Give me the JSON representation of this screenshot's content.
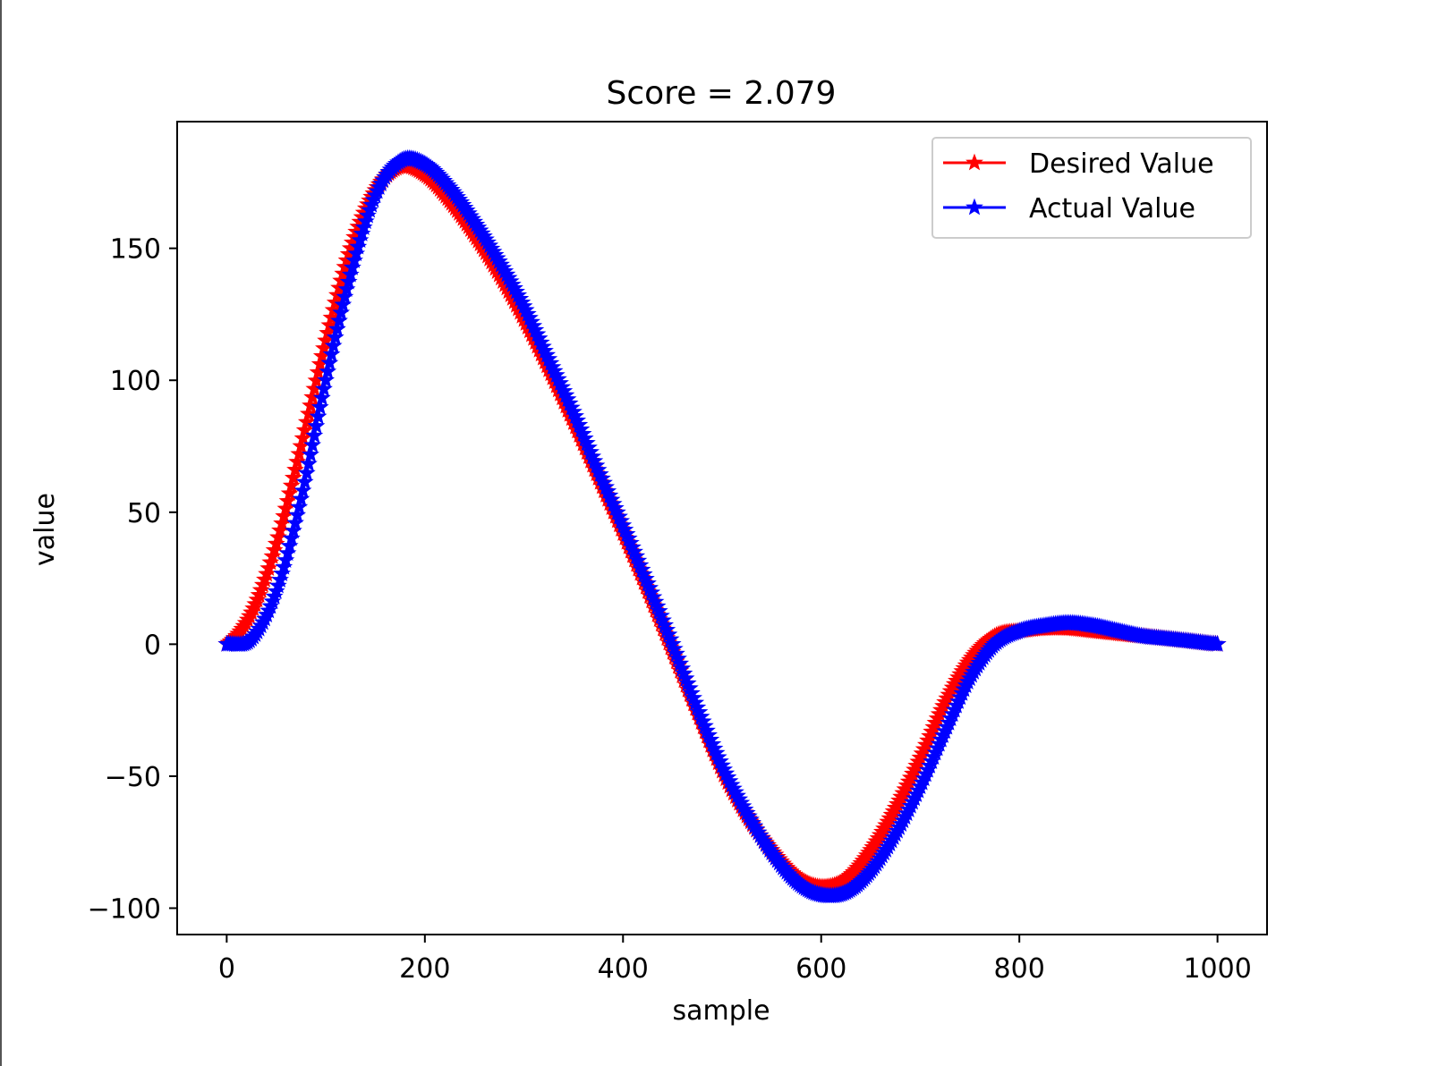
{
  "chart_data": {
    "type": "line",
    "title": "Score = 2.079",
    "xlabel": "sample",
    "ylabel": "value",
    "xlim": [
      -50,
      1050
    ],
    "ylim": [
      -110,
      198
    ],
    "xticks": [
      0,
      200,
      400,
      600,
      800,
      1000
    ],
    "xtick_labels": [
      "0",
      "200",
      "400",
      "600",
      "800",
      "1000"
    ],
    "yticks": [
      -100,
      -50,
      0,
      50,
      100,
      150
    ],
    "ytick_labels": [
      "−100",
      "−50",
      "0",
      "50",
      "100",
      "150"
    ],
    "grid": false,
    "legend_placement": "top-right",
    "marker": "star",
    "x": [
      0,
      25,
      50,
      75,
      100,
      125,
      150,
      175,
      200,
      225,
      250,
      275,
      300,
      325,
      350,
      375,
      400,
      425,
      450,
      475,
      500,
      525,
      550,
      575,
      600,
      625,
      650,
      675,
      700,
      725,
      750,
      775,
      800,
      825,
      850,
      875,
      900,
      925,
      950,
      975,
      1000
    ],
    "series": [
      {
        "name": "Desired Value",
        "color": "#ff0000",
        "values": [
          0,
          12,
          38,
          75,
          115,
          150,
          172,
          181,
          178,
          168,
          155,
          140,
          123,
          104,
          84,
          63,
          42,
          20,
          -3,
          -26,
          -48,
          -65,
          -78,
          -88,
          -92,
          -89,
          -78,
          -62,
          -43,
          -22,
          -6,
          3,
          5,
          6,
          6,
          5,
          4,
          3,
          2,
          1,
          0
        ]
      },
      {
        "name": "Actual Value",
        "color": "#0000ff",
        "values": [
          0,
          2,
          20,
          55,
          100,
          140,
          170,
          183,
          182,
          173,
          160,
          145,
          128,
          108,
          88,
          66,
          45,
          23,
          0,
          -24,
          -46,
          -64,
          -79,
          -90,
          -95,
          -94,
          -86,
          -72,
          -54,
          -33,
          -13,
          0,
          5,
          7,
          8,
          7,
          5,
          3,
          2,
          1,
          0
        ]
      }
    ]
  }
}
